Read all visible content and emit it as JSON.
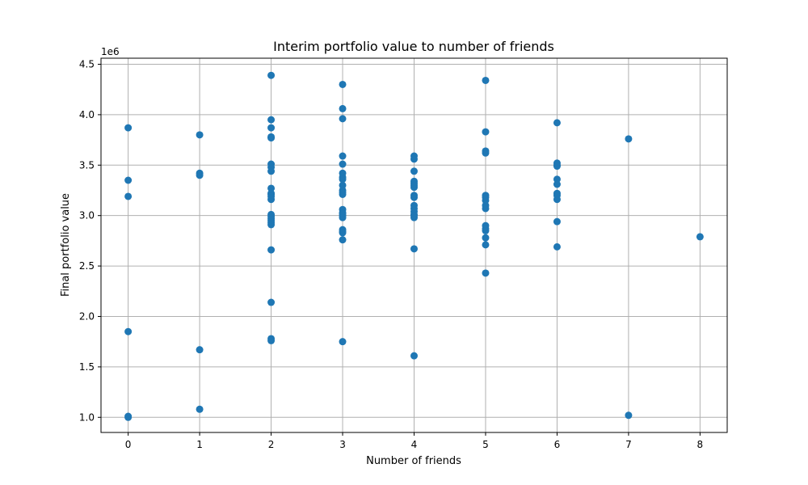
{
  "chart_data": {
    "type": "scatter",
    "title": "Interim portfolio value to number of friends",
    "xlabel": "Number of friends",
    "ylabel": "Final portfolio value",
    "y_offset_label": "1e6",
    "xlim": [
      -0.38,
      8.38
    ],
    "ylim": [
      0.85,
      4.56
    ],
    "xticks": [
      0,
      1,
      2,
      3,
      4,
      5,
      6,
      7,
      8
    ],
    "xtick_labels": [
      "0",
      "1",
      "2",
      "3",
      "4",
      "5",
      "6",
      "7",
      "8"
    ],
    "yticks": [
      1.0,
      1.5,
      2.0,
      2.5,
      3.0,
      3.5,
      4.0,
      4.5
    ],
    "ytick_labels": [
      "1.0",
      "1.5",
      "2.0",
      "2.5",
      "3.0",
      "3.5",
      "4.0",
      "4.5"
    ],
    "grid": true,
    "marker_color": "#1f77b4",
    "series": [
      {
        "x": [
          0,
          0,
          0,
          0,
          0,
          0,
          1,
          1,
          1,
          1,
          1,
          2,
          2,
          2,
          2,
          2,
          2,
          2,
          2,
          2,
          2,
          2,
          2,
          2,
          2,
          2,
          2,
          2,
          2,
          2,
          2,
          2,
          2,
          2,
          3,
          3,
          3,
          3,
          3,
          3,
          3,
          3,
          3,
          3,
          3,
          3,
          3,
          3,
          3,
          3,
          3,
          3,
          3,
          3,
          3,
          3,
          4,
          4,
          4,
          4,
          4,
          4,
          4,
          4,
          4,
          4,
          4,
          4,
          4,
          4,
          4,
          4,
          4,
          5,
          5,
          5,
          5,
          5,
          5,
          5,
          5,
          5,
          5,
          5,
          5,
          5,
          5,
          5,
          6,
          6,
          6,
          6,
          6,
          6,
          6,
          6,
          6,
          6,
          6,
          7,
          7,
          8
        ],
        "y": [
          3.87,
          3.35,
          3.19,
          1.85,
          1.01,
          1.0,
          3.8,
          3.42,
          3.4,
          1.67,
          1.08,
          4.39,
          3.95,
          3.87,
          3.78,
          3.77,
          3.51,
          3.48,
          3.44,
          3.27,
          3.21,
          3.16,
          3.01,
          2.97,
          2.95,
          2.93,
          2.91,
          2.66,
          2.14,
          1.78,
          1.76,
          3.22,
          3.19,
          2.99,
          4.3,
          4.06,
          3.96,
          3.59,
          3.51,
          3.42,
          3.38,
          3.3,
          3.25,
          3.21,
          3.06,
          3.03,
          3.0,
          2.98,
          2.86,
          2.83,
          2.76,
          1.75,
          3.36,
          3.02,
          3.23,
          2.84,
          3.59,
          3.56,
          3.44,
          3.34,
          3.32,
          3.28,
          3.2,
          3.18,
          3.1,
          3.07,
          3.04,
          3.01,
          2.98,
          2.67,
          1.61,
          3.3,
          3.0,
          4.34,
          3.83,
          3.64,
          3.62,
          3.2,
          3.15,
          3.1,
          3.07,
          2.9,
          2.87,
          2.85,
          2.78,
          2.71,
          2.43,
          3.18,
          3.92,
          3.52,
          3.49,
          3.36,
          3.31,
          3.22,
          3.2,
          3.16,
          2.94,
          2.69,
          3.5,
          3.76,
          1.02,
          2.79
        ]
      }
    ]
  }
}
